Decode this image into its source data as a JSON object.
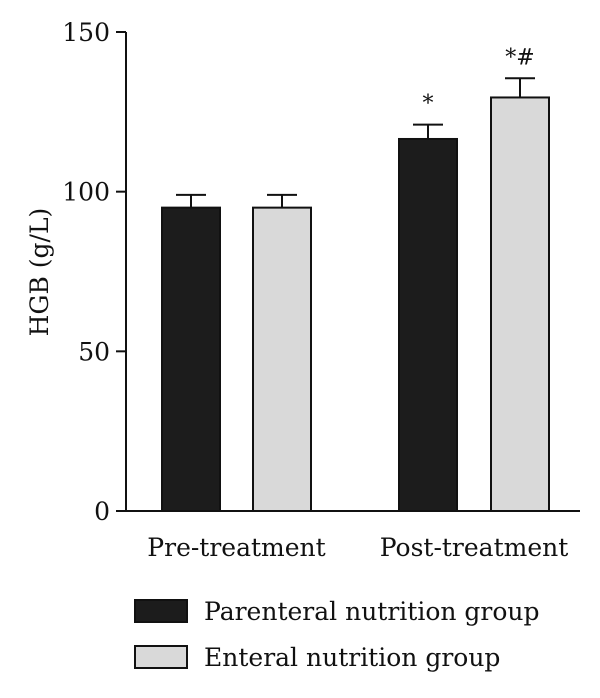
{
  "chart_data": {
    "type": "bar",
    "categories": [
      "Pre-treatment",
      "Post-treatment"
    ],
    "ylabel": "HGB (g/L)",
    "ylim": [
      0,
      150
    ],
    "yticks": [
      0,
      50,
      100,
      150
    ],
    "grid": false,
    "legend_position": "bottom",
    "series": [
      {
        "name": "Parenteral nutrition group",
        "color": "#1c1c1c",
        "values": [
          95,
          116.5
        ],
        "errors": [
          4,
          4.5
        ],
        "annotations": [
          "",
          "*"
        ]
      },
      {
        "name": "Enteral nutrition group",
        "color": "#d9d9d9",
        "values": [
          95,
          129.5
        ],
        "errors": [
          4,
          6
        ],
        "annotations": [
          "",
          "*#"
        ]
      }
    ]
  }
}
